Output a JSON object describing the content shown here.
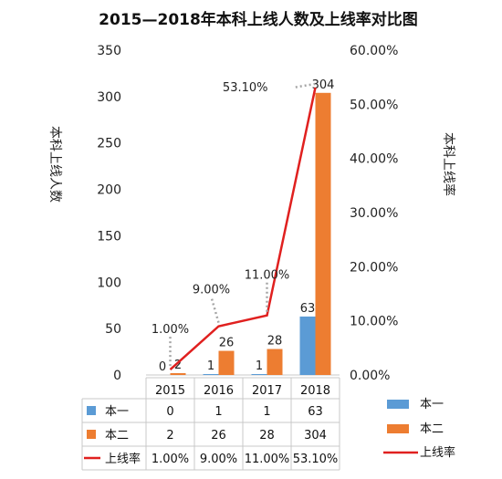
{
  "chart_data": {
    "type": "bar",
    "title": "2015—2018年本科上线人数及上线率对比图",
    "ylabel": "本科上线人数",
    "y2label": "本科上线率",
    "categories": [
      "2015",
      "2016",
      "2017",
      "2018"
    ],
    "ylim": [
      0,
      350
    ],
    "y2lim": [
      0,
      60
    ],
    "yticks": [
      "0",
      "50",
      "100",
      "150",
      "200",
      "250",
      "300",
      "350"
    ],
    "y2ticks": [
      "0.00%",
      "10.00%",
      "20.00%",
      "30.00%",
      "40.00%",
      "50.00%",
      "60.00%"
    ],
    "series": [
      {
        "name": "本一",
        "kind": "bar",
        "color": "#5b9bd5",
        "values": [
          0,
          1,
          1,
          63
        ],
        "labels": [
          "0",
          "1",
          "1",
          "63"
        ]
      },
      {
        "name": "本二",
        "kind": "bar",
        "color": "#ed7d31",
        "values": [
          2,
          26,
          28,
          304
        ],
        "labels": [
          "2",
          "26",
          "28",
          "304"
        ]
      },
      {
        "name": "上线率",
        "kind": "line",
        "axis": "y2",
        "color": "#e0201f",
        "values": [
          1.0,
          9.0,
          11.0,
          53.1
        ],
        "labels": [
          "1.00%",
          "9.00%",
          "11.00%",
          "53.10%"
        ]
      }
    ],
    "grid": false,
    "legend": "right"
  }
}
